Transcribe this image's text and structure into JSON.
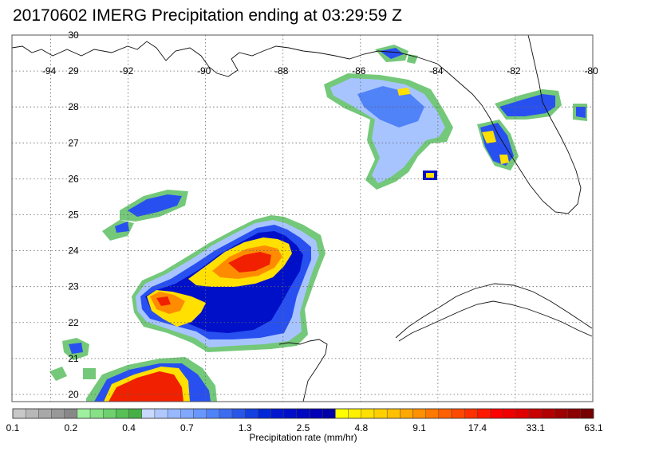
{
  "title": "20170602 IMERG Precipitation ending at 03:29:59 Z",
  "map": {
    "lon_ticks": [
      "-94",
      "-92",
      "-90",
      "-88",
      "-86",
      "-84",
      "-82",
      "-80"
    ],
    "lat_ticks": [
      "30",
      "29",
      "28",
      "27",
      "26",
      "25",
      "24",
      "23",
      "22",
      "21",
      "20"
    ],
    "grid": true
  },
  "colorbar": {
    "title": "Precipitation rate (mm/hr)",
    "labels": [
      "0.1",
      "0.2",
      "0.4",
      "0.7",
      "1.3",
      "2.5",
      "4.8",
      "9.1",
      "17.4",
      "33.1",
      "63.1"
    ],
    "colors": [
      "#c8c8c8",
      "#b8b8b8",
      "#a8a8a8",
      "#989898",
      "#888888",
      "#9ef09e",
      "#86e086",
      "#6ed06e",
      "#56c056",
      "#46b046",
      "#c8d8ff",
      "#b0c8ff",
      "#98b8ff",
      "#80a8ff",
      "#6898ff",
      "#5082f8",
      "#3c6cf0",
      "#2856e8",
      "#1440e0",
      "#0028d8",
      "#0018d0",
      "#0010c8",
      "#0008c0",
      "#0000b8",
      "#0000a8",
      "#ffff00",
      "#fff000",
      "#ffe000",
      "#ffd000",
      "#ffc000",
      "#ffa800",
      "#ff9000",
      "#ff7800",
      "#ff6000",
      "#ff4800",
      "#ff3000",
      "#ff1800",
      "#ff0000",
      "#f00000",
      "#e00000",
      "#c80000",
      "#b40000",
      "#a00000",
      "#8c0000",
      "#780000"
    ]
  }
}
